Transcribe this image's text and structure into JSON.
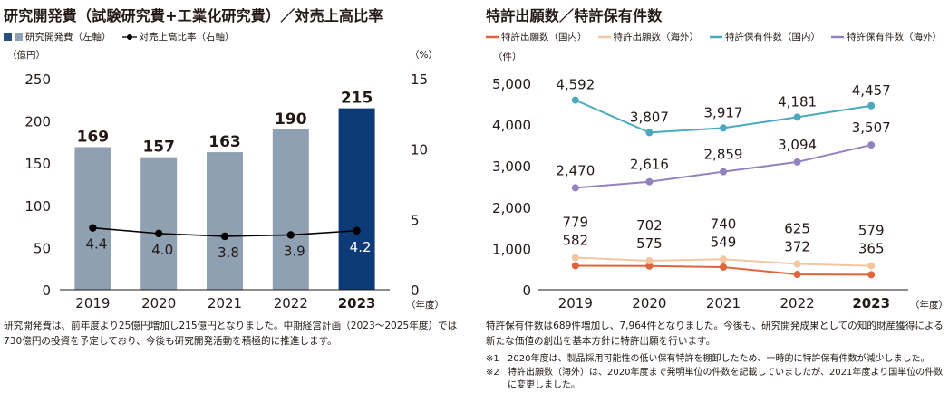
{
  "left": {
    "title": "研究開発費（試験研究費+工業化研究費）／対売上高比率",
    "legend": [
      {
        "label": "研究開発費（左軸）",
        "colors": [
          "#2d4e7a",
          "#8ea0b2"
        ]
      },
      {
        "label": "対売上高比率（右軸）",
        "color": "#000000"
      }
    ],
    "left_unit": "（億円）",
    "right_unit": "（%）",
    "x_unit": "（年度）",
    "description": "研究開発費は、前年度より25億円増加し215億円となりました。中期経営計画（2023～2025年度）では730億円の投資を予定しており、今後も研究開発活動を積極的に推進します。"
  },
  "right": {
    "title": "特許出願数／特許保有件数",
    "unit": "（件）",
    "x_unit": "（年度）",
    "description": "特許保有件数は689件増加し、7,964件となりました。今後も、研究開発成果としての知的財産獲得による新たな価値の創出を基本方針に特許出願を行います。",
    "notes": [
      {
        "mark": "※1",
        "text": "2020年度は、製品採用可能性の低い保有特許を棚卸したため、一時的に特許保有件数が減少しました。"
      },
      {
        "mark": "※2",
        "text": "特許出願数（海外）は、2020年度まで発明単位の件数を記載していましたが、2021年度より国単位の件数に変更しました。"
      }
    ]
  },
  "chart_data": [
    {
      "type": "bar",
      "categories": [
        "2019",
        "2020",
        "2021",
        "2022",
        "2023"
      ],
      "series": [
        {
          "name": "研究開発費（左軸）",
          "values": [
            169,
            157,
            163,
            190,
            215
          ],
          "color": "#8ea0b2",
          "highlight_color": "#0f3a78"
        },
        {
          "name": "対売上高比率（右軸）",
          "type": "line",
          "axis": "right",
          "values": [
            4.4,
            4.0,
            3.8,
            3.9,
            4.2
          ],
          "labels": [
            "4.4",
            "4.0",
            "3.8",
            "3.9",
            "4.2"
          ],
          "color": "#000000"
        }
      ],
      "bar_labels": [
        "169",
        "157",
        "163",
        "190",
        "215"
      ],
      "yticks_left": [
        "0",
        "50",
        "100",
        "150",
        "200",
        "250"
      ],
      "ylim_left": [
        0,
        250
      ],
      "yticks_right": [
        "0",
        "5",
        "10",
        "15"
      ],
      "ylim_right": [
        0,
        15
      ],
      "highlight_category": "2023"
    },
    {
      "type": "line",
      "categories": [
        "2019",
        "2020",
        "2021",
        "2022",
        "2023"
      ],
      "series": [
        {
          "name": "特許出願数（国内）",
          "values": [
            582,
            575,
            549,
            372,
            365
          ],
          "labels": [
            "582",
            "575",
            "549",
            "372",
            "365"
          ],
          "color": "#e0643c"
        },
        {
          "name": "特許出願数（海外）",
          "values": [
            779,
            702,
            740,
            625,
            579
          ],
          "labels": [
            "779",
            "702",
            "740",
            "625",
            "579"
          ],
          "color": "#f2c6a0"
        },
        {
          "name": "特許保有件数（国内）",
          "values": [
            4592,
            3807,
            3917,
            4181,
            4457
          ],
          "labels": [
            "4,592",
            "3,807",
            "3,917",
            "4,181",
            "4,457"
          ],
          "color": "#4aa9bd"
        },
        {
          "name": "特許保有件数（海外）",
          "values": [
            2470,
            2616,
            2859,
            3094,
            3507
          ],
          "labels": [
            "2,470",
            "2,616",
            "2,859",
            "3,094",
            "3,507"
          ],
          "color": "#9482c0"
        }
      ],
      "yticks": [
        "0",
        "1,000",
        "2,000",
        "3,000",
        "4,000",
        "5,000"
      ],
      "ylim": [
        0,
        5000
      ],
      "highlight_category": "2023"
    }
  ]
}
